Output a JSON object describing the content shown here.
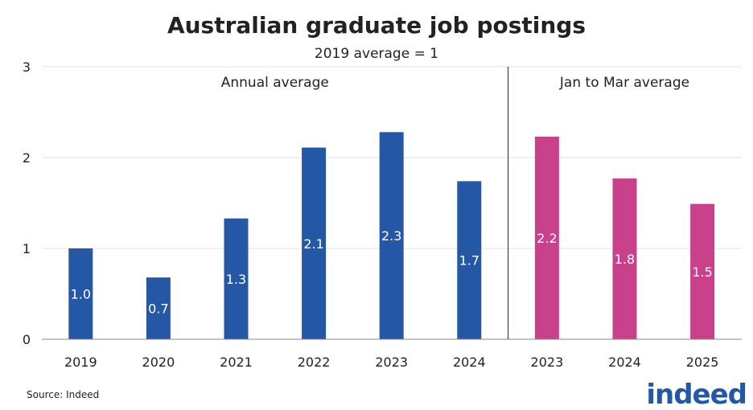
{
  "chart_data": {
    "type": "bar",
    "title": "Australian graduate job postings",
    "subtitle": "2019 average = 1",
    "ylim": [
      0,
      3
    ],
    "yticks": [
      0,
      1,
      2,
      3
    ],
    "grid": true,
    "panels": [
      {
        "label": "Annual average",
        "color": "#2557a7",
        "categories": [
          "2019",
          "2020",
          "2021",
          "2022",
          "2023",
          "2024"
        ],
        "values": [
          1.0,
          0.68,
          1.33,
          2.11,
          2.28,
          1.74
        ],
        "labels": [
          "1.0",
          "0.7",
          "1.3",
          "2.1",
          "2.3",
          "1.7"
        ]
      },
      {
        "label": "Jan to Mar average",
        "color": "#c9408b",
        "categories": [
          "2023",
          "2024",
          "2025"
        ],
        "values": [
          2.23,
          1.77,
          1.49
        ],
        "labels": [
          "2.2",
          "1.8",
          "1.5"
        ]
      }
    ],
    "source": "Source: Indeed"
  },
  "logo": {
    "text": "indeed",
    "color": "#2557a7"
  }
}
